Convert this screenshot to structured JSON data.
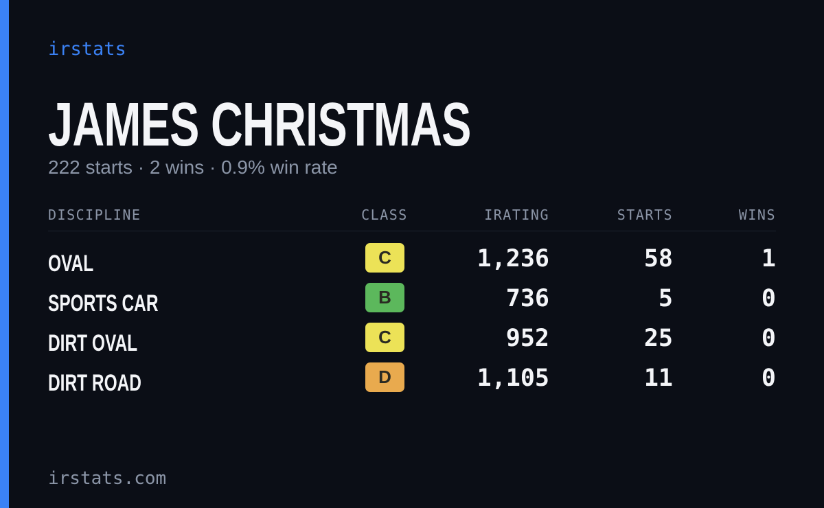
{
  "brand": "irstats",
  "title": "JAMES CHRISTMAS",
  "subtitle": "222 starts · 2 wins · 0.9% win rate",
  "table": {
    "headers": [
      "DISCIPLINE",
      "CLASS",
      "IRATING",
      "STARTS",
      "WINS"
    ],
    "rows": [
      [
        "OVAL",
        "C",
        "1,236",
        "58",
        "1"
      ],
      [
        "SPORTS CAR",
        "B",
        "736",
        "5",
        "0"
      ],
      [
        "DIRT OVAL",
        "C",
        "952",
        "25",
        "0"
      ],
      [
        "DIRT ROAD",
        "D",
        "1,105",
        "11",
        "0"
      ]
    ],
    "badge_colors": [
      "#ece257",
      "#5cb85c",
      "#ece257",
      "#e9aa4e"
    ]
  },
  "footer": "irstats.com"
}
